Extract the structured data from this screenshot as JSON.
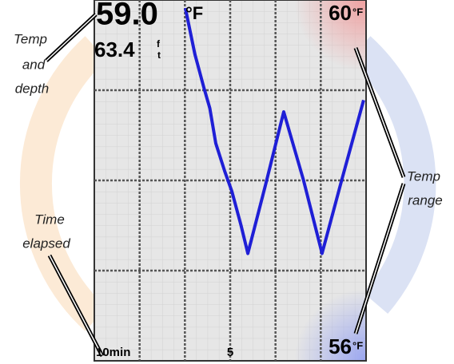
{
  "chart_data": {
    "type": "line",
    "readout": {
      "temp": "59.0",
      "temp_unit": "°F",
      "depth": "63.4",
      "depth_unit_top": "f",
      "depth_unit_bottom": "t"
    },
    "unit": "°F",
    "xlim": [
      10,
      0
    ],
    "xticks": [
      {
        "value": 10,
        "label": "10min"
      },
      5
    ],
    "xgrid": [
      8.333,
      6.667,
      5,
      3.333,
      1.667
    ],
    "ylim": [
      56,
      60
    ],
    "yticks": [
      56,
      60
    ],
    "ygrid": [
      57,
      58,
      59
    ],
    "series": [
      {
        "color": "#1f1fd6",
        "x": [
          6.65,
          6.3,
          5.97,
          5.75,
          5.53,
          5.2,
          4.94,
          4.6,
          4.35,
          3.7,
          3.03,
          2.3,
          1.62,
          0.9,
          0.09
        ],
        "values": [
          59.91,
          59.4,
          59.03,
          58.8,
          58.41,
          58.1,
          57.88,
          57.5,
          57.19,
          57.95,
          58.76,
          58.0,
          57.19,
          58.0,
          58.89
        ]
      }
    ],
    "callouts": {
      "temp_depth": [
        "Temp",
        "and",
        "depth"
      ],
      "time": [
        "Time",
        "elapsed"
      ],
      "range": [
        "Temp",
        "range"
      ]
    }
  }
}
